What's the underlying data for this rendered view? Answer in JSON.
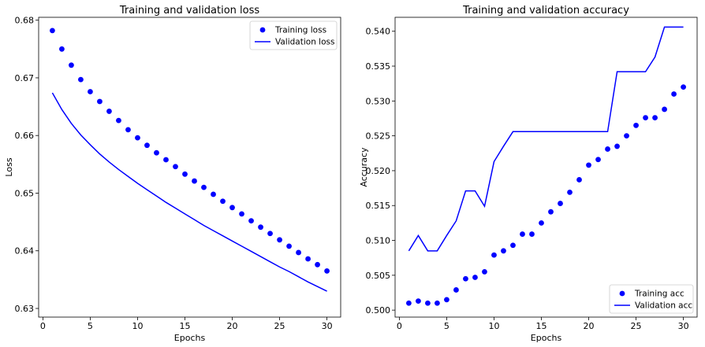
{
  "chart_data": [
    {
      "type": "line",
      "title": "Training and validation loss",
      "xlabel": "Epochs",
      "ylabel": "Loss",
      "xlim": [
        -0.45,
        31.45
      ],
      "ylim": [
        0.6285,
        0.6805
      ],
      "xticks": [
        0,
        5,
        10,
        15,
        20,
        25,
        30
      ],
      "yticks": [
        0.63,
        0.64,
        0.65,
        0.66,
        0.67,
        0.68
      ],
      "ytick_labels": [
        "0.63",
        "0.64",
        "0.65",
        "0.66",
        "0.67",
        "0.68"
      ],
      "grid": false,
      "legend_position": "top-right",
      "x": [
        1,
        2,
        3,
        4,
        5,
        6,
        7,
        8,
        9,
        10,
        11,
        12,
        13,
        14,
        15,
        16,
        17,
        18,
        19,
        20,
        21,
        22,
        23,
        24,
        25,
        26,
        27,
        28,
        29,
        30
      ],
      "series": [
        {
          "name": "Training loss",
          "style": "dots",
          "color": "#0000ff",
          "values": [
            0.6782,
            0.675,
            0.6722,
            0.6697,
            0.6676,
            0.6659,
            0.6642,
            0.6626,
            0.661,
            0.6596,
            0.6583,
            0.657,
            0.6558,
            0.6546,
            0.6533,
            0.6521,
            0.651,
            0.6498,
            0.6486,
            0.6475,
            0.6464,
            0.6452,
            0.6441,
            0.643,
            0.6419,
            0.6408,
            0.6397,
            0.6386,
            0.6376,
            0.6365
          ]
        },
        {
          "name": "Validation loss",
          "style": "line",
          "color": "#0000ff",
          "values": [
            0.6674,
            0.6645,
            0.6621,
            0.6601,
            0.6584,
            0.6568,
            0.6554,
            0.6541,
            0.6529,
            0.6517,
            0.6506,
            0.6495,
            0.6484,
            0.6474,
            0.6464,
            0.6454,
            0.6444,
            0.6435,
            0.6426,
            0.6417,
            0.6408,
            0.6399,
            0.639,
            0.6381,
            0.6372,
            0.6364,
            0.6355,
            0.6346,
            0.6338,
            0.633
          ]
        }
      ]
    },
    {
      "type": "line",
      "title": "Training and validation accuracy",
      "xlabel": "Epochs",
      "ylabel": "Accuracy",
      "xlim": [
        -0.45,
        31.45
      ],
      "ylim": [
        0.499,
        0.542
      ],
      "xticks": [
        0,
        5,
        10,
        15,
        20,
        25,
        30
      ],
      "yticks": [
        0.5,
        0.505,
        0.51,
        0.515,
        0.52,
        0.525,
        0.53,
        0.535,
        0.54
      ],
      "ytick_labels": [
        "0.500",
        "0.505",
        "0.510",
        "0.515",
        "0.520",
        "0.525",
        "0.530",
        "0.535",
        "0.540"
      ],
      "grid": false,
      "legend_position": "bottom-right",
      "x": [
        1,
        2,
        3,
        4,
        5,
        6,
        7,
        8,
        9,
        10,
        11,
        12,
        13,
        14,
        15,
        16,
        17,
        18,
        19,
        20,
        21,
        22,
        23,
        24,
        25,
        26,
        27,
        28,
        29,
        30
      ],
      "series": [
        {
          "name": "Training acc",
          "style": "dots",
          "color": "#0000ff",
          "values": [
            0.501,
            0.5013,
            0.501,
            0.501,
            0.5015,
            0.5029,
            0.5045,
            0.5047,
            0.5055,
            0.5079,
            0.5085,
            0.5093,
            0.5109,
            0.5109,
            0.5125,
            0.5141,
            0.5153,
            0.5169,
            0.5187,
            0.5208,
            0.5216,
            0.5231,
            0.5235,
            0.525,
            0.5265,
            0.5276,
            0.5276,
            0.5288,
            0.531,
            0.532
          ]
        },
        {
          "name": "Validation acc",
          "style": "line",
          "color": "#0000ff",
          "values": [
            0.5085,
            0.5107,
            0.5085,
            0.5085,
            0.5107,
            0.5128,
            0.5171,
            0.5171,
            0.5149,
            0.5213,
            0.5235,
            0.5256,
            0.5256,
            0.5256,
            0.5256,
            0.5256,
            0.5256,
            0.5256,
            0.5256,
            0.5256,
            0.5256,
            0.5256,
            0.5342,
            0.5342,
            0.5342,
            0.5342,
            0.5363,
            0.5406,
            0.5406,
            0.5406
          ]
        }
      ]
    }
  ]
}
